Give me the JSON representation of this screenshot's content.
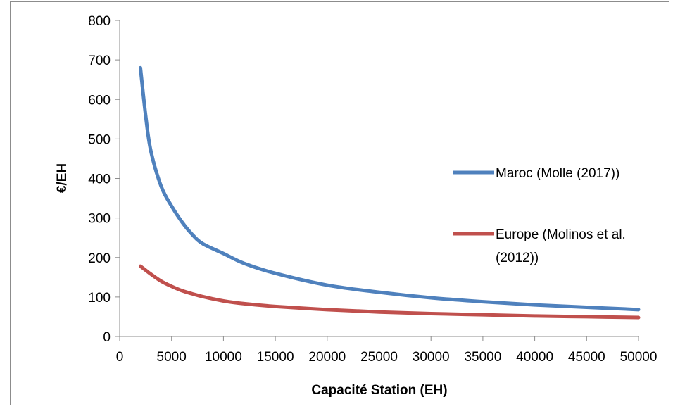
{
  "chart_data": {
    "type": "line",
    "xlabel": "Capacité Station (EH)",
    "ylabel": "€/EH",
    "xlim": [
      0,
      50000
    ],
    "ylim": [
      0,
      800
    ],
    "x_ticks": [
      "0",
      "5000",
      "10000",
      "15000",
      "20000",
      "25000",
      "30000",
      "35000",
      "40000",
      "45000",
      "50000"
    ],
    "y_ticks": [
      "0",
      "100",
      "200",
      "300",
      "400",
      "500",
      "600",
      "700",
      "800"
    ],
    "grid": false,
    "legend_position": "right",
    "series": [
      {
        "name": "Maroc (Molle (2017))",
        "color": "#4f81bd",
        "x": [
          2000,
          2500,
          3000,
          4000,
          5000,
          6000,
          7000,
          8000,
          10000,
          12000,
          15000,
          20000,
          25000,
          30000,
          35000,
          40000,
          45000,
          50000
        ],
        "y": [
          680,
          560,
          470,
          380,
          330,
          290,
          258,
          235,
          210,
          185,
          160,
          130,
          112,
          98,
          88,
          80,
          74,
          68
        ]
      },
      {
        "name": "Europe (Molinos et al. (2012))",
        "legend_lines": [
          "Europe (Molinos et al.",
          "(2012))"
        ],
        "color": "#c0504d",
        "x": [
          2000,
          2500,
          3000,
          4000,
          5000,
          6000,
          7000,
          8000,
          10000,
          12000,
          15000,
          20000,
          25000,
          30000,
          35000,
          40000,
          45000,
          50000
        ],
        "y": [
          178,
          168,
          158,
          140,
          127,
          116,
          108,
          101,
          90,
          83,
          76,
          68,
          62,
          58,
          55,
          52,
          50,
          48
        ]
      }
    ]
  }
}
